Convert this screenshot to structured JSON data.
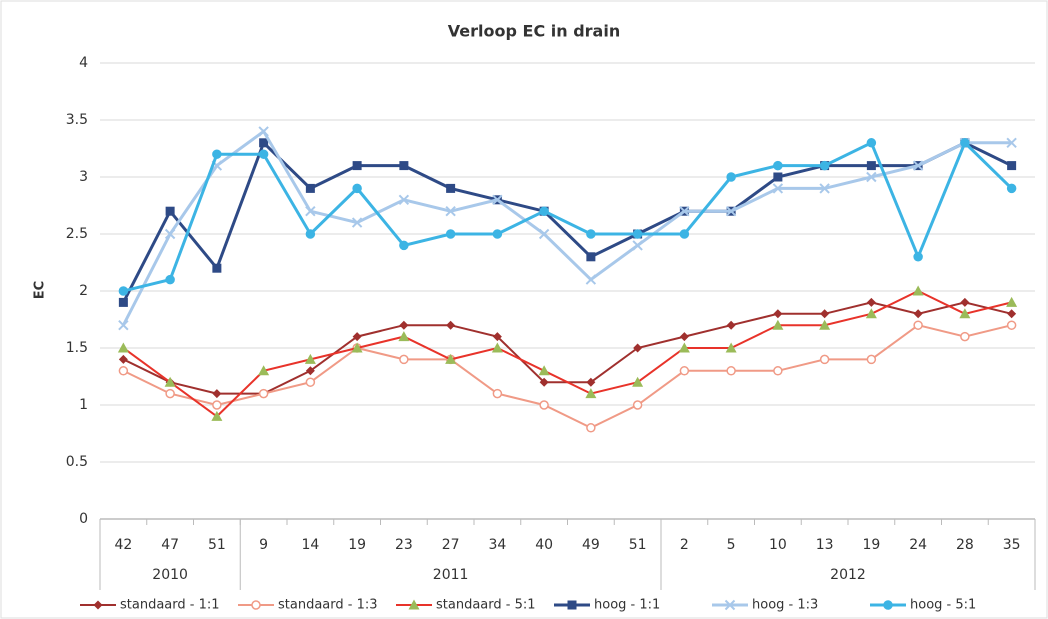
{
  "chart_data": {
    "type": "line",
    "title": "Verloop EC in drain",
    "y_label": "EC",
    "category_groups": [
      {
        "label": "2010",
        "categories": [
          "42",
          "47",
          "51"
        ]
      },
      {
        "label": "2011",
        "categories": [
          "9",
          "14",
          "19",
          "23",
          "27",
          "34",
          "40",
          "49",
          "51"
        ]
      },
      {
        "label": "2012",
        "categories": [
          "2",
          "5",
          "10",
          "13",
          "19",
          "24",
          "28",
          "35"
        ]
      }
    ],
    "ylim": [
      0,
      4
    ],
    "yticks": [
      0,
      0.5,
      1,
      1.5,
      2,
      2.5,
      3,
      3.5,
      4
    ],
    "grid": true,
    "legend": "bottom",
    "series": [
      {
        "name": "standaard - 1:1",
        "color": "#a0302e",
        "marker": "diamond",
        "values": [
          1.4,
          1.2,
          1.1,
          1.1,
          1.3,
          1.6,
          1.7,
          1.7,
          1.6,
          1.2,
          1.2,
          1.5,
          1.6,
          1.7,
          1.8,
          1.8,
          1.9,
          1.8,
          1.9,
          1.8
        ]
      },
      {
        "name": "standaard - 1:3",
        "color": "#f09a86",
        "marker": "circle",
        "values": [
          1.3,
          1.1,
          1.0,
          1.1,
          1.2,
          1.5,
          1.4,
          1.4,
          1.1,
          1.0,
          0.8,
          1.0,
          1.3,
          1.3,
          1.3,
          1.4,
          1.4,
          1.7,
          1.6,
          1.7
        ]
      },
      {
        "name": "standaard - 5:1",
        "color": "#e8332a",
        "marker_color": "#9bbb59",
        "marker": "triangle",
        "values": [
          1.5,
          1.2,
          0.9,
          1.3,
          1.4,
          1.5,
          1.6,
          1.4,
          1.5,
          1.3,
          1.1,
          1.2,
          1.5,
          1.5,
          1.7,
          1.7,
          1.8,
          2.0,
          1.8,
          1.9
        ]
      },
      {
        "name": "hoog - 1:1",
        "color": "#2e4a86",
        "marker": "square",
        "values": [
          1.9,
          2.7,
          2.2,
          3.3,
          2.9,
          3.1,
          3.1,
          2.9,
          2.8,
          2.7,
          2.3,
          2.5,
          2.7,
          2.7,
          3.0,
          3.1,
          3.1,
          3.1,
          3.3,
          3.1
        ]
      },
      {
        "name": "hoog - 1:3",
        "color": "#a8c8ea",
        "marker": "x",
        "values": [
          1.7,
          2.5,
          3.1,
          3.4,
          2.7,
          2.6,
          2.8,
          2.7,
          2.8,
          2.5,
          2.1,
          2.4,
          2.7,
          2.7,
          2.9,
          2.9,
          3.0,
          3.1,
          3.3,
          3.3
        ]
      },
      {
        "name": "hoog - 5:1",
        "color": "#3cb4e4",
        "marker": "circle",
        "values": [
          2.0,
          2.1,
          3.2,
          3.2,
          2.5,
          2.9,
          2.4,
          2.5,
          2.5,
          2.7,
          2.5,
          2.5,
          2.5,
          3.0,
          3.1,
          3.1,
          3.3,
          2.3,
          3.3,
          2.9
        ]
      }
    ]
  }
}
